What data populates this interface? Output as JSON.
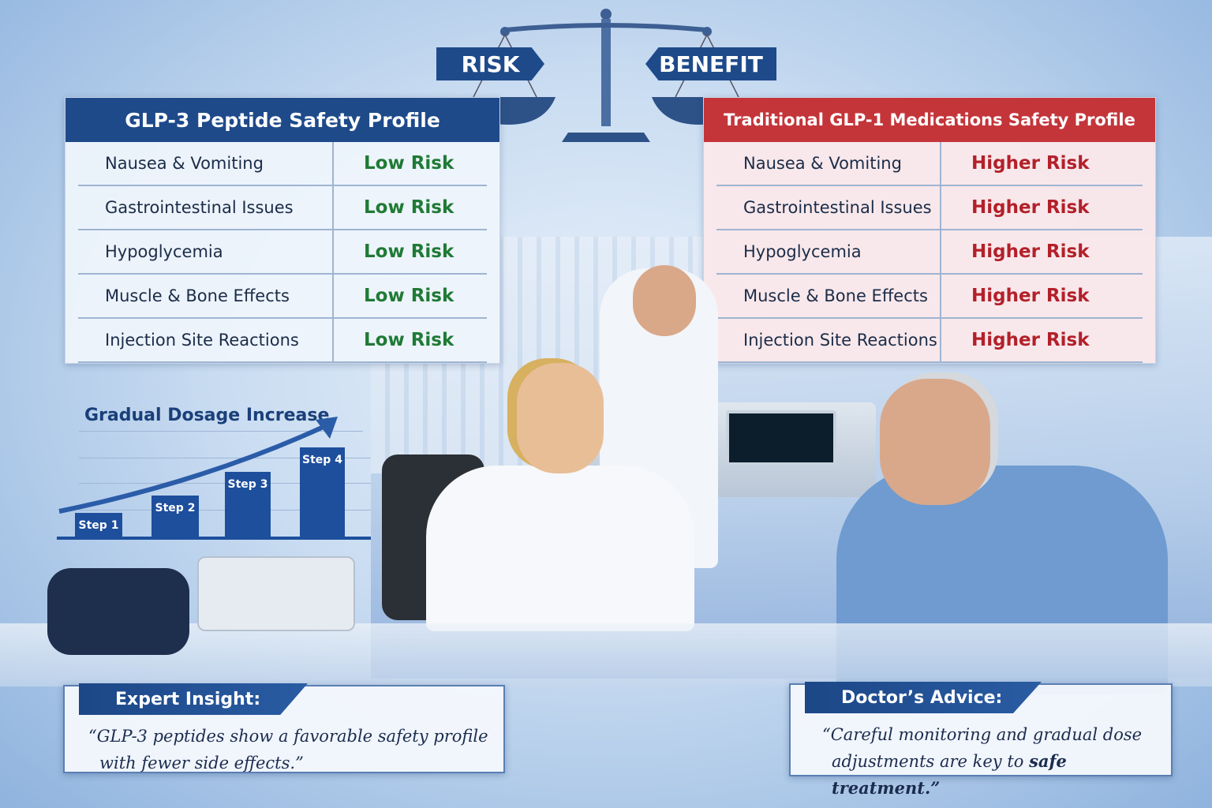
{
  "scale": {
    "risk_label": "RISK",
    "benefit_label": "BENEFIT"
  },
  "left_table": {
    "title": "GLP-3 Peptide Safety Profile",
    "header_color": "#1e4a8a",
    "rating_color": "#1f7a35",
    "rows": [
      {
        "effect": "Nausea & Vomiting",
        "risk": "Low Risk"
      },
      {
        "effect": "Gastrointestinal Issues",
        "risk": "Low Risk"
      },
      {
        "effect": "Hypoglycemia",
        "risk": "Low Risk"
      },
      {
        "effect": "Muscle & Bone Effects",
        "risk": "Low Risk"
      },
      {
        "effect": "Injection Site Reactions",
        "risk": "Low Risk"
      }
    ]
  },
  "right_table": {
    "title": "Traditional GLP-1 Medications Safety Profile",
    "header_color": "#c4353a",
    "rating_color": "#b3202a",
    "rows": [
      {
        "effect": "Nausea & Vomiting",
        "risk": "Higher Risk"
      },
      {
        "effect": "Gastrointestinal Issues",
        "risk": "Higher Risk"
      },
      {
        "effect": "Hypoglycemia",
        "risk": "Higher Risk"
      },
      {
        "effect": "Muscle & Bone Effects",
        "risk": "Higher Risk"
      },
      {
        "effect": "Injection Site Reactions",
        "risk": "Higher Risk"
      }
    ]
  },
  "dosage_chart": {
    "title": "Gradual Dosage Increase",
    "steps": [
      "Step 1",
      "Step 2",
      "Step 3",
      "Step 4"
    ]
  },
  "expert_insight": {
    "title": "Expert Insight:",
    "line1": "“GLP-3 peptides show a favorable safety profile",
    "line2": "with fewer side effects.”"
  },
  "doctors_advice": {
    "title": "Doctor’s Advice:",
    "line1": "“Careful monitoring and gradual dose",
    "line2_a": "adjustments are key to ",
    "line2_b": "safe treatment.”"
  }
}
